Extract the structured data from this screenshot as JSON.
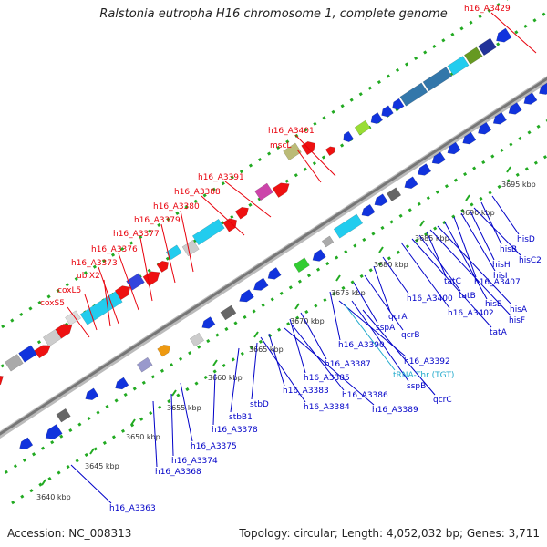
{
  "title": "Ralstonia eutropha H16 chromosome 1, complete genome",
  "footer": {
    "accession": "Accession: NC_008313",
    "topology": "Topology: circular; Length: 4,052,032 bp; Genes: 3,711"
  },
  "colors": {
    "red_label": "#e8000b",
    "blue_label": "#0000c8",
    "cyan_label": "#22aacc",
    "backbone": "#888888",
    "tick": "#22aa22"
  },
  "ticks": [
    {
      "label": "3640 kbp"
    },
    {
      "label": "3645 kbp"
    },
    {
      "label": "3650 kbp"
    },
    {
      "label": "3655 kbp"
    },
    {
      "label": "3660 kbp"
    },
    {
      "label": "3665 kbp"
    },
    {
      "label": "3670 kbp"
    },
    {
      "label": "3675 kbp"
    },
    {
      "label": "3680 kbp"
    },
    {
      "label": "3685 kbp"
    },
    {
      "label": "3690 kbp"
    },
    {
      "label": "3695 kbp"
    }
  ],
  "upper_labels": [
    {
      "text": "h16_A3429"
    },
    {
      "text": "h16_A3401"
    },
    {
      "text": "mscL"
    },
    {
      "text": "h16_A3391"
    },
    {
      "text": "h16_A3388"
    },
    {
      "text": "h16_A3380"
    },
    {
      "text": "h16_A3379"
    },
    {
      "text": "h16_A3377"
    },
    {
      "text": "h16_A3376"
    },
    {
      "text": "h16_A3373"
    },
    {
      "text": "ubiX2"
    },
    {
      "text": "coxL5"
    },
    {
      "text": "coxS5"
    }
  ],
  "lower_labels": [
    {
      "text": "hisD"
    },
    {
      "text": "hisB"
    },
    {
      "text": "hisC2"
    },
    {
      "text": "hisH"
    },
    {
      "text": "hisI"
    },
    {
      "text": "h16_A3407"
    },
    {
      "text": "hisE"
    },
    {
      "text": "hisA"
    },
    {
      "text": "hisF"
    },
    {
      "text": "tatC"
    },
    {
      "text": "tatB"
    },
    {
      "text": "tatA"
    },
    {
      "text": "h16_A3402"
    },
    {
      "text": "h16_A3400"
    },
    {
      "text": "qcrA"
    },
    {
      "text": "qcrB"
    },
    {
      "text": "sspA"
    },
    {
      "text": "h16_A3390"
    },
    {
      "text": "h16_A3392"
    },
    {
      "text": "sspB"
    },
    {
      "text": "qcrC"
    },
    {
      "text": "tRNA-Thr (TGT)"
    },
    {
      "text": "h16_A3387"
    },
    {
      "text": "h16_A3385"
    },
    {
      "text": "h16_A3386"
    },
    {
      "text": "h16_A3389"
    },
    {
      "text": "h16_A3383"
    },
    {
      "text": "h16_A3384"
    },
    {
      "text": "stbD"
    },
    {
      "text": "stbB1"
    },
    {
      "text": "h16_A3378"
    },
    {
      "text": "h16_A3375"
    },
    {
      "text": "h16_A3374"
    },
    {
      "text": "h16_A3368"
    },
    {
      "text": "h16_A3363"
    }
  ]
}
